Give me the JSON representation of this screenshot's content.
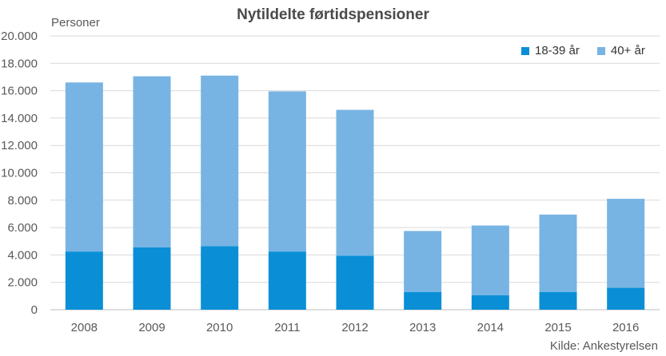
{
  "chart_data": {
    "type": "bar",
    "stacked": true,
    "title": "Nytildelte førtidspensioner",
    "ylabel": "Personer",
    "source": "Kilde: Ankestyrelsen",
    "categories": [
      "2008",
      "2009",
      "2010",
      "2011",
      "2012",
      "2013",
      "2014",
      "2015",
      "2016"
    ],
    "series": [
      {
        "name": "18-39 år",
        "color": "#0a8fd6",
        "values": [
          4250,
          4550,
          4650,
          4250,
          3950,
          1300,
          1050,
          1300,
          1600
        ]
      },
      {
        "name": "40+ år",
        "color": "#77b4e3",
        "values": [
          12350,
          12500,
          12450,
          11700,
          10650,
          4450,
          5100,
          5650,
          6500
        ]
      }
    ],
    "ylim": [
      0,
      20000
    ],
    "yticks": [
      "0",
      "2.000",
      "4.000",
      "6.000",
      "8.000",
      "10.000",
      "12.000",
      "14.000",
      "16.000",
      "18.000",
      "20.000"
    ],
    "grid": true,
    "legend_position": "top-right"
  }
}
